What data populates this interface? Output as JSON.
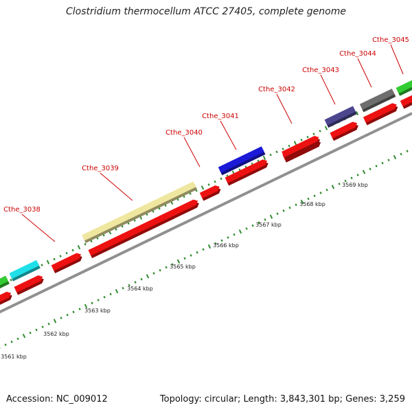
{
  "header": {
    "title": "Clostridium thermocellum ATCC 27405, complete genome"
  },
  "footer": {
    "accession": "Accession: NC_009012",
    "summary": "Topology: circular; Length: 3,843,301 bp; Genes: 3,259"
  },
  "colors": {
    "label": "#cc0000",
    "tick": "#2e8b2e",
    "backbone": "#909090",
    "red_gene": "#ee1111"
  },
  "genes": [
    {
      "name": "Cthe_3038",
      "color": "#1fe0e8",
      "lane": "top"
    },
    {
      "name": "Cthe_3039",
      "color": "#efe7a0",
      "lane": "top"
    },
    {
      "name": "Cthe_3040",
      "color": "#ee1111",
      "lane": "mid"
    },
    {
      "name": "Cthe_3041",
      "color": "#1a1ad8",
      "lane": "top"
    },
    {
      "name": "Cthe_3042",
      "color": "#ee1111",
      "lane": "mid"
    },
    {
      "name": "Cthe_3043",
      "color": "#4c468f",
      "lane": "top"
    },
    {
      "name": "Cthe_3044",
      "color": "#6e6e6e",
      "lane": "top"
    },
    {
      "name": "Cthe_3045",
      "color": "#33cc33",
      "lane": "top"
    }
  ],
  "kbp_labels": [
    "3561 kbp",
    "3562 kbp",
    "3563 kbp",
    "3564 kbp",
    "3565 kbp",
    "3566 kbp",
    "3567 kbp",
    "3568 kbp",
    "3569 kbp"
  ]
}
